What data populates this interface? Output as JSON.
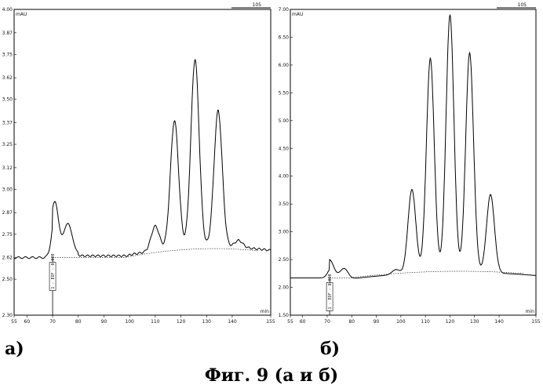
{
  "chart_data": [
    {
      "type": "line",
      "panel": "a",
      "ylabel": "mAU",
      "xlabel": "min",
      "xlim": [
        55,
        155
      ],
      "ylim": [
        2.3,
        4.0
      ],
      "x_ticks": [
        "55",
        "60",
        "70",
        "80",
        "90",
        "100",
        "110",
        "120",
        "130",
        "140",
        "155"
      ],
      "y_ticks": [
        "2.30",
        "2.50",
        "2.62",
        "2.75",
        "2.87",
        "3.00",
        "3.12",
        "3.25",
        "3.37",
        "3.50",
        "3.62",
        "3.75",
        "3.87",
        "4.00"
      ],
      "corner_label": "105",
      "marker": {
        "x": 70,
        "text": "1 - EOF - 0.000"
      },
      "baseline": 2.62,
      "peaks": [
        {
          "x": 71,
          "y": 2.93
        },
        {
          "x": 76,
          "y": 2.81
        },
        {
          "x": 110,
          "y": 2.8
        },
        {
          "x": 117.5,
          "y": 3.38
        },
        {
          "x": 125.5,
          "y": 3.72
        },
        {
          "x": 134.5,
          "y": 3.44
        },
        {
          "x": 142.5,
          "y": 2.72
        }
      ]
    },
    {
      "type": "line",
      "panel": "b",
      "ylabel": "mAU",
      "xlabel": "min",
      "xlim": [
        55,
        155
      ],
      "ylim": [
        1.5,
        7.0
      ],
      "x_ticks": [
        "55",
        "60",
        "70",
        "80",
        "90",
        "100",
        "110",
        "120",
        "130",
        "140",
        "155"
      ],
      "y_ticks": [
        "1.50",
        "2.00",
        "2.50",
        "3.00",
        "3.50",
        "4.00",
        "4.50",
        "5.00",
        "5.50",
        "6.00",
        "6.50",
        "7.00"
      ],
      "corner_label": "105",
      "marker": {
        "x": 71,
        "text": "1 - EOF - 0.000"
      },
      "baseline": 2.17,
      "peaks": [
        {
          "x": 71.5,
          "y": 2.48
        },
        {
          "x": 77,
          "y": 2.34
        },
        {
          "x": 98,
          "y": 2.32
        },
        {
          "x": 104.5,
          "y": 3.76
        },
        {
          "x": 112,
          "y": 6.12
        },
        {
          "x": 120,
          "y": 6.9
        },
        {
          "x": 128,
          "y": 6.22
        },
        {
          "x": 136.5,
          "y": 3.67
        }
      ]
    }
  ],
  "labels": {
    "panel_a": "а)",
    "panel_b": "б)",
    "caption": "Фиг. 9  (а и б)"
  }
}
